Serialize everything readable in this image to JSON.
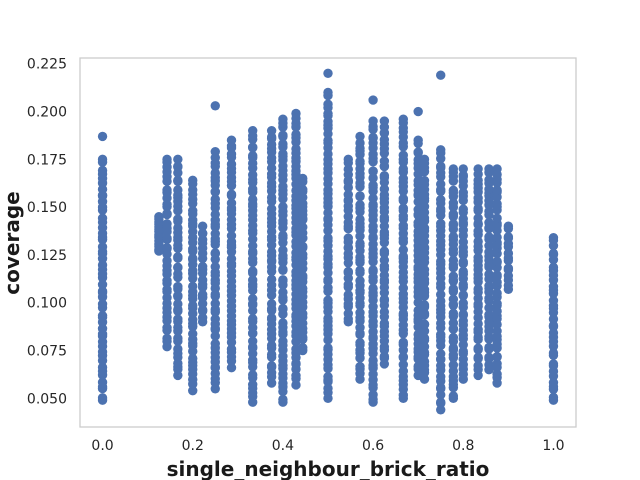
{
  "chart_data": {
    "type": "scatter",
    "title": "",
    "xlabel": "single_neighbour_brick_ratio",
    "ylabel": "coverage",
    "xlim": [
      -0.05,
      1.05
    ],
    "ylim": [
      0.035,
      0.228
    ],
    "x_ticks": [
      {
        "value": 0.0,
        "label": "0.0"
      },
      {
        "value": 0.2,
        "label": "0.2"
      },
      {
        "value": 0.4,
        "label": "0.4"
      },
      {
        "value": 0.6,
        "label": "0.6"
      },
      {
        "value": 0.8,
        "label": "0.8"
      },
      {
        "value": 1.0,
        "label": "1.0"
      }
    ],
    "y_ticks": [
      {
        "value": 0.05,
        "label": "0.050"
      },
      {
        "value": 0.075,
        "label": "0.075"
      },
      {
        "value": 0.1,
        "label": "0.100"
      },
      {
        "value": 0.125,
        "label": "0.125"
      },
      {
        "value": 0.15,
        "label": "0.150"
      },
      {
        "value": 0.175,
        "label": "0.175"
      },
      {
        "value": 0.2,
        "label": "0.200"
      },
      {
        "value": 0.225,
        "label": "0.225"
      }
    ],
    "grid": false,
    "legend": "none",
    "marker_color": "#4c72b0",
    "columns": [
      {
        "x": 0.0,
        "ymin": 0.049,
        "ymax": 0.175,
        "outliers": [
          0.187
        ]
      },
      {
        "x": 0.125,
        "ymin": 0.127,
        "ymax": 0.145,
        "outliers": []
      },
      {
        "x": 0.143,
        "ymin": 0.077,
        "ymax": 0.175,
        "outliers": []
      },
      {
        "x": 0.167,
        "ymin": 0.062,
        "ymax": 0.175,
        "outliers": []
      },
      {
        "x": 0.2,
        "ymin": 0.054,
        "ymax": 0.164,
        "outliers": []
      },
      {
        "x": 0.222,
        "ymin": 0.09,
        "ymax": 0.14,
        "outliers": [
          0.103
        ]
      },
      {
        "x": 0.25,
        "ymin": 0.055,
        "ymax": 0.179,
        "outliers": [
          0.203
        ]
      },
      {
        "x": 0.286,
        "ymin": 0.066,
        "ymax": 0.185,
        "outliers": [
          0.129
        ]
      },
      {
        "x": 0.333,
        "ymin": 0.048,
        "ymax": 0.19,
        "outliers": []
      },
      {
        "x": 0.375,
        "ymin": 0.058,
        "ymax": 0.19,
        "outliers": []
      },
      {
        "x": 0.4,
        "ymin": 0.048,
        "ymax": 0.196,
        "outliers": []
      },
      {
        "x": 0.429,
        "ymin": 0.057,
        "ymax": 0.199,
        "outliers": []
      },
      {
        "x": 0.444,
        "ymin": 0.075,
        "ymax": 0.165,
        "outliers": [
          0.144
        ]
      },
      {
        "x": 0.5,
        "ymin": 0.05,
        "ymax": 0.21,
        "outliers": [
          0.22
        ]
      },
      {
        "x": 0.545,
        "ymin": 0.09,
        "ymax": 0.175,
        "outliers": []
      },
      {
        "x": 0.571,
        "ymin": 0.06,
        "ymax": 0.187,
        "outliers": []
      },
      {
        "x": 0.6,
        "ymin": 0.048,
        "ymax": 0.195,
        "outliers": [
          0.206
        ]
      },
      {
        "x": 0.625,
        "ymin": 0.068,
        "ymax": 0.195,
        "outliers": []
      },
      {
        "x": 0.667,
        "ymin": 0.05,
        "ymax": 0.196,
        "outliers": []
      },
      {
        "x": 0.7,
        "ymin": 0.062,
        "ymax": 0.185,
        "outliers": [
          0.2
        ]
      },
      {
        "x": 0.714,
        "ymin": 0.06,
        "ymax": 0.175,
        "outliers": []
      },
      {
        "x": 0.75,
        "ymin": 0.044,
        "ymax": 0.18,
        "outliers": [
          0.219
        ]
      },
      {
        "x": 0.778,
        "ymin": 0.05,
        "ymax": 0.17,
        "outliers": []
      },
      {
        "x": 0.8,
        "ymin": 0.06,
        "ymax": 0.17,
        "outliers": []
      },
      {
        "x": 0.833,
        "ymin": 0.062,
        "ymax": 0.17,
        "outliers": []
      },
      {
        "x": 0.857,
        "ymin": 0.065,
        "ymax": 0.17,
        "outliers": []
      },
      {
        "x": 0.875,
        "ymin": 0.058,
        "ymax": 0.17,
        "outliers": []
      },
      {
        "x": 0.9,
        "ymin": 0.107,
        "ymax": 0.14,
        "outliers": []
      },
      {
        "x": 1.0,
        "ymin": 0.049,
        "ymax": 0.134,
        "outliers": []
      }
    ]
  }
}
